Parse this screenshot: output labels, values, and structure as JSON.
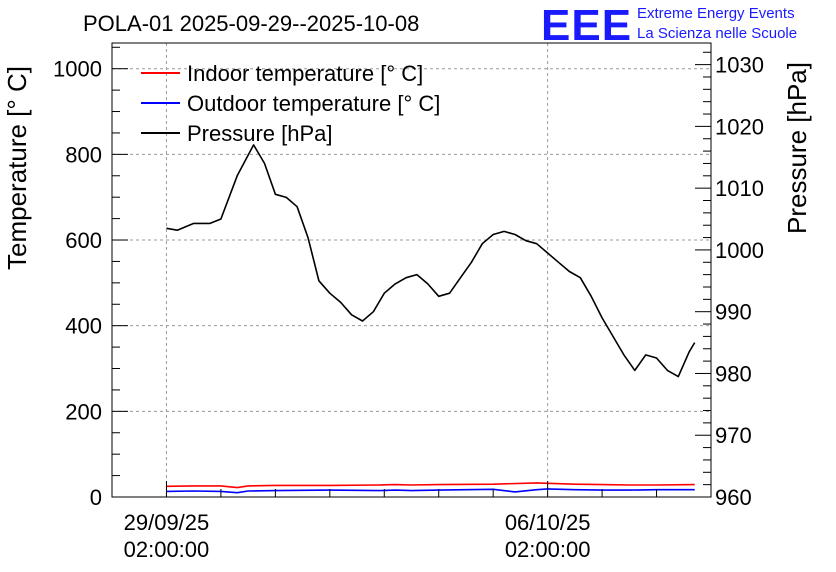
{
  "chart_data": {
    "type": "line",
    "title": "POLA-01 2025-09-29--2025-10-08",
    "ylabel_left": "Temperature [° C]",
    "ylabel_right": "Pressure [hPa]",
    "xlabel": "",
    "x_ticks": [
      {
        "day": 0,
        "line1": "29/09/25",
        "line2": "02:00:00"
      },
      {
        "day": 7,
        "line1": "06/10/25",
        "line2": "02:00:00"
      }
    ],
    "xlim_days": [
      -1.0,
      10.0
    ],
    "ylim_left": [
      0,
      1060
    ],
    "left_ticks": [
      0,
      200,
      400,
      600,
      800,
      1000
    ],
    "ylim_right": [
      960,
      1033.5
    ],
    "right_ticks": [
      960,
      970,
      980,
      990,
      1000,
      1010,
      1020,
      1030
    ],
    "grid": true,
    "legend_position": "top-left",
    "series": [
      {
        "name": "Indoor temperature [° C]",
        "color": "#ff0000",
        "axis": "left",
        "x": [
          0.0,
          0.5,
          1.0,
          1.3,
          1.5,
          2.0,
          3.0,
          3.9,
          4.2,
          4.5,
          5.0,
          6.0,
          6.8,
          7.0,
          7.5,
          8.0,
          8.5,
          9.0,
          9.7
        ],
        "y": [
          25,
          26,
          26,
          22,
          26,
          27,
          27,
          28,
          29,
          28,
          29,
          30,
          33,
          32,
          30,
          29,
          28,
          28,
          29
        ]
      },
      {
        "name": "Outdoor temperature [° C]",
        "color": "#0000ff",
        "axis": "left",
        "x": [
          0.0,
          0.5,
          1.0,
          1.3,
          1.5,
          2.0,
          3.0,
          3.9,
          4.2,
          4.5,
          5.0,
          6.0,
          6.4,
          6.8,
          7.0,
          7.5,
          8.0,
          8.5,
          9.0,
          9.7
        ],
        "y": [
          13,
          14,
          13,
          10,
          14,
          15,
          16,
          15,
          16,
          15,
          16,
          18,
          12,
          17,
          19,
          17,
          16,
          16,
          17,
          17
        ]
      },
      {
        "name": "Pressure [hPa]",
        "color": "#000000",
        "axis": "right",
        "x": [
          0.0,
          0.2,
          0.5,
          0.8,
          1.0,
          1.3,
          1.6,
          1.8,
          2.0,
          2.2,
          2.4,
          2.6,
          2.8,
          3.0,
          3.2,
          3.4,
          3.6,
          3.8,
          4.0,
          4.2,
          4.4,
          4.6,
          4.8,
          5.0,
          5.2,
          5.4,
          5.6,
          5.8,
          6.0,
          6.2,
          6.4,
          6.6,
          6.8,
          7.0,
          7.2,
          7.4,
          7.6,
          7.8,
          8.0,
          8.2,
          8.4,
          8.6,
          8.8,
          9.0,
          9.2,
          9.4,
          9.6,
          9.7
        ],
        "y": [
          1003.5,
          1003.2,
          1004.3,
          1004.3,
          1005.0,
          1012.0,
          1017.0,
          1014.0,
          1009.0,
          1008.5,
          1007.0,
          1002.0,
          995.0,
          993.0,
          991.5,
          989.5,
          988.5,
          990.0,
          993.0,
          994.5,
          995.5,
          996.0,
          994.5,
          992.5,
          993.0,
          995.5,
          998.0,
          1001.0,
          1002.5,
          1003.0,
          1002.5,
          1001.5,
          1001.0,
          999.5,
          998.0,
          996.5,
          995.5,
          992.5,
          989.0,
          986.0,
          983.0,
          980.5,
          983.0,
          982.5,
          980.5,
          979.5,
          983.5,
          985.0
        ]
      }
    ]
  },
  "logo": {
    "letters": "EEE",
    "line1": "Extreme Energy Events",
    "line2": "La Scienza nelle Scuole",
    "color": "#1a1aff"
  }
}
